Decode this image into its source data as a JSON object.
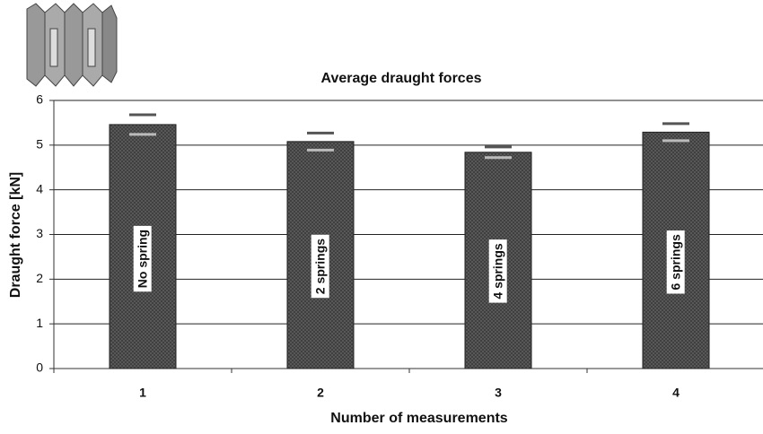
{
  "chart_data": {
    "type": "bar",
    "title": "Average draught forces",
    "x_label": "Number of measurements",
    "y_label": "Draught force [kN]",
    "categories": [
      "1",
      "2",
      "3",
      "4"
    ],
    "values": [
      5.46,
      5.08,
      4.84,
      5.29
    ],
    "errors": [
      0.22,
      0.19,
      0.12,
      0.19
    ],
    "bar_labels": [
      "No spring",
      "2 springs",
      "4 springs",
      "6 springs"
    ],
    "color": "#5a5a5a",
    "ylim": [
      0,
      6
    ],
    "yticks": [
      0,
      1,
      2,
      3,
      4,
      5,
      6
    ],
    "grid": true
  }
}
